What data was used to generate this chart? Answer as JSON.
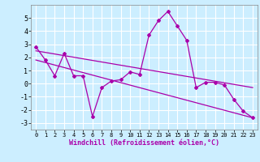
{
  "xlabel": "Windchill (Refroidissement éolien,°C)",
  "background_color": "#cceeff",
  "grid_color": "#ffffff",
  "line_color": "#aa00aa",
  "xlim": [
    -0.5,
    23.5
  ],
  "ylim": [
    -3.5,
    6.0
  ],
  "yticks": [
    -3,
    -2,
    -1,
    0,
    1,
    2,
    3,
    4,
    5
  ],
  "xticks": [
    0,
    1,
    2,
    3,
    4,
    5,
    6,
    7,
    8,
    9,
    10,
    11,
    12,
    13,
    14,
    15,
    16,
    17,
    18,
    19,
    20,
    21,
    22,
    23
  ],
  "series1_x": [
    0,
    1,
    2,
    3,
    4,
    5,
    6,
    7,
    8,
    9,
    10,
    11,
    12,
    13,
    14,
    15,
    16,
    17,
    18,
    19,
    20,
    21,
    22,
    23
  ],
  "series1_y": [
    2.8,
    1.8,
    0.6,
    2.3,
    0.6,
    0.6,
    -2.5,
    -0.3,
    0.2,
    0.3,
    0.9,
    0.7,
    3.7,
    4.8,
    5.5,
    4.4,
    3.3,
    -0.3,
    0.1,
    0.1,
    -0.1,
    -1.2,
    -2.1,
    -2.6
  ],
  "trend1_x": [
    0,
    23
  ],
  "trend1_y": [
    2.5,
    -0.3
  ],
  "trend2_x": [
    0,
    23
  ],
  "trend2_y": [
    1.8,
    -2.6
  ],
  "font_size_xlabel": 6,
  "font_size_ytick": 6,
  "font_size_xtick": 5
}
